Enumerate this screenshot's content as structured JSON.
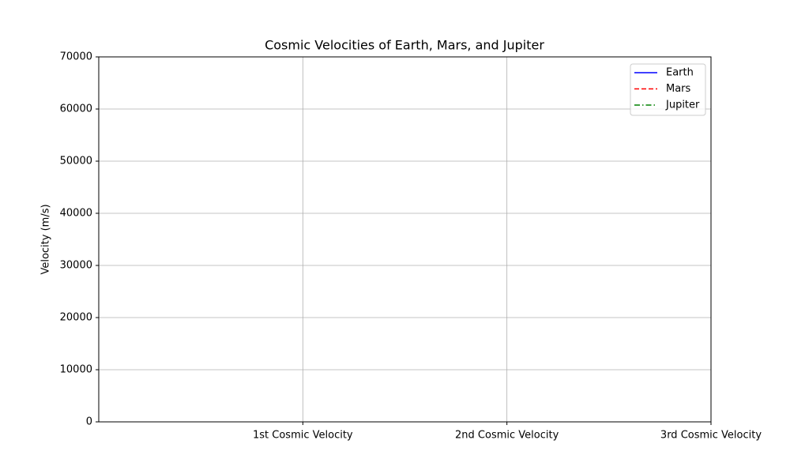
{
  "chart_data": {
    "type": "line",
    "title": "Cosmic Velocities of Earth, Mars, and Jupiter",
    "ylabel": "Velocity (m/s)",
    "x": [
      1,
      2,
      3
    ],
    "xlim": [
      0,
      3
    ],
    "xticks": [
      {
        "value": 1,
        "label": "1st Cosmic Velocity"
      },
      {
        "value": 2,
        "label": "2nd Cosmic Velocity"
      },
      {
        "value": 3,
        "label": "3rd Cosmic Velocity"
      }
    ],
    "ylim": [
      0,
      70000
    ],
    "yticks": [
      0,
      10000,
      20000,
      30000,
      40000,
      50000,
      60000,
      70000
    ],
    "grid": true,
    "legend": "upper right",
    "series": [
      {
        "name": "Earth",
        "color": "#0000ff",
        "style": "solid",
        "values": [
          null,
          null,
          null
        ]
      },
      {
        "name": "Mars",
        "color": "#ff0000",
        "style": "dashed",
        "values": [
          null,
          null,
          null
        ]
      },
      {
        "name": "Jupiter",
        "color": "#008000",
        "style": "dashdot",
        "values": [
          null,
          null,
          null
        ]
      }
    ]
  }
}
